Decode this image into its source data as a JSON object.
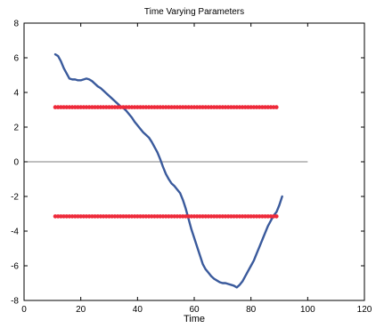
{
  "chart_data": {
    "type": "line",
    "title": "Time Varying Parameters",
    "xlabel": "Time",
    "ylabel": "",
    "xlim": [
      0,
      120
    ],
    "ylim": [
      -8,
      8
    ],
    "xticks": [
      0,
      20,
      40,
      60,
      80,
      100,
      120
    ],
    "yticks": [
      -8,
      -6,
      -4,
      -2,
      0,
      2,
      4,
      6,
      8
    ],
    "grid": false,
    "legend": "none",
    "reference_line": {
      "y": 0,
      "x_range": [
        0,
        100
      ],
      "color": "#555555"
    },
    "series": [
      {
        "style": "solid-line",
        "color": "#3a5a9c",
        "x": [
          11,
          12,
          13,
          14,
          15,
          16,
          17,
          18,
          19,
          20,
          21,
          22,
          23,
          24,
          25,
          26,
          27,
          28,
          29,
          30,
          31,
          32,
          33,
          34,
          35,
          36,
          37,
          38,
          39,
          40,
          41,
          42,
          43,
          44,
          45,
          46,
          47,
          48,
          49,
          50,
          51,
          52,
          53,
          54,
          55,
          56,
          57,
          58,
          59,
          60,
          61,
          62,
          63,
          64,
          65,
          66,
          67,
          68,
          69,
          70,
          71,
          72,
          73,
          74,
          75,
          76,
          77,
          78,
          79,
          80,
          81,
          82,
          83,
          84,
          85,
          86,
          87,
          88,
          89,
          90,
          91
        ],
        "y": [
          6.2,
          6.1,
          5.8,
          5.4,
          5.1,
          4.8,
          4.75,
          4.75,
          4.7,
          4.7,
          4.75,
          4.8,
          4.75,
          4.65,
          4.5,
          4.35,
          4.25,
          4.1,
          3.95,
          3.8,
          3.65,
          3.5,
          3.35,
          3.2,
          3.1,
          2.95,
          2.75,
          2.55,
          2.3,
          2.1,
          1.9,
          1.7,
          1.55,
          1.4,
          1.15,
          0.85,
          0.55,
          0.15,
          -0.3,
          -0.7,
          -1.0,
          -1.25,
          -1.4,
          -1.6,
          -1.8,
          -2.2,
          -2.7,
          -3.3,
          -3.9,
          -4.4,
          -4.9,
          -5.4,
          -5.9,
          -6.2,
          -6.4,
          -6.6,
          -6.75,
          -6.85,
          -6.95,
          -7.0,
          -7.0,
          -7.05,
          -7.1,
          -7.15,
          -7.25,
          -7.1,
          -6.9,
          -6.6,
          -6.3,
          -6.0,
          -5.7,
          -5.3,
          -4.9,
          -4.5,
          -4.1,
          -3.7,
          -3.4,
          -3.1,
          -2.9,
          -2.5,
          -2.0
        ]
      },
      {
        "style": "dotted-markers",
        "color": "#ee2a3a",
        "y_constant": 3.15,
        "x_range": [
          11,
          89
        ],
        "x_step": 1
      },
      {
        "style": "dotted-markers",
        "color": "#ee2a3a",
        "y_constant": -3.15,
        "x_range": [
          11,
          89
        ],
        "x_step": 1
      }
    ]
  }
}
